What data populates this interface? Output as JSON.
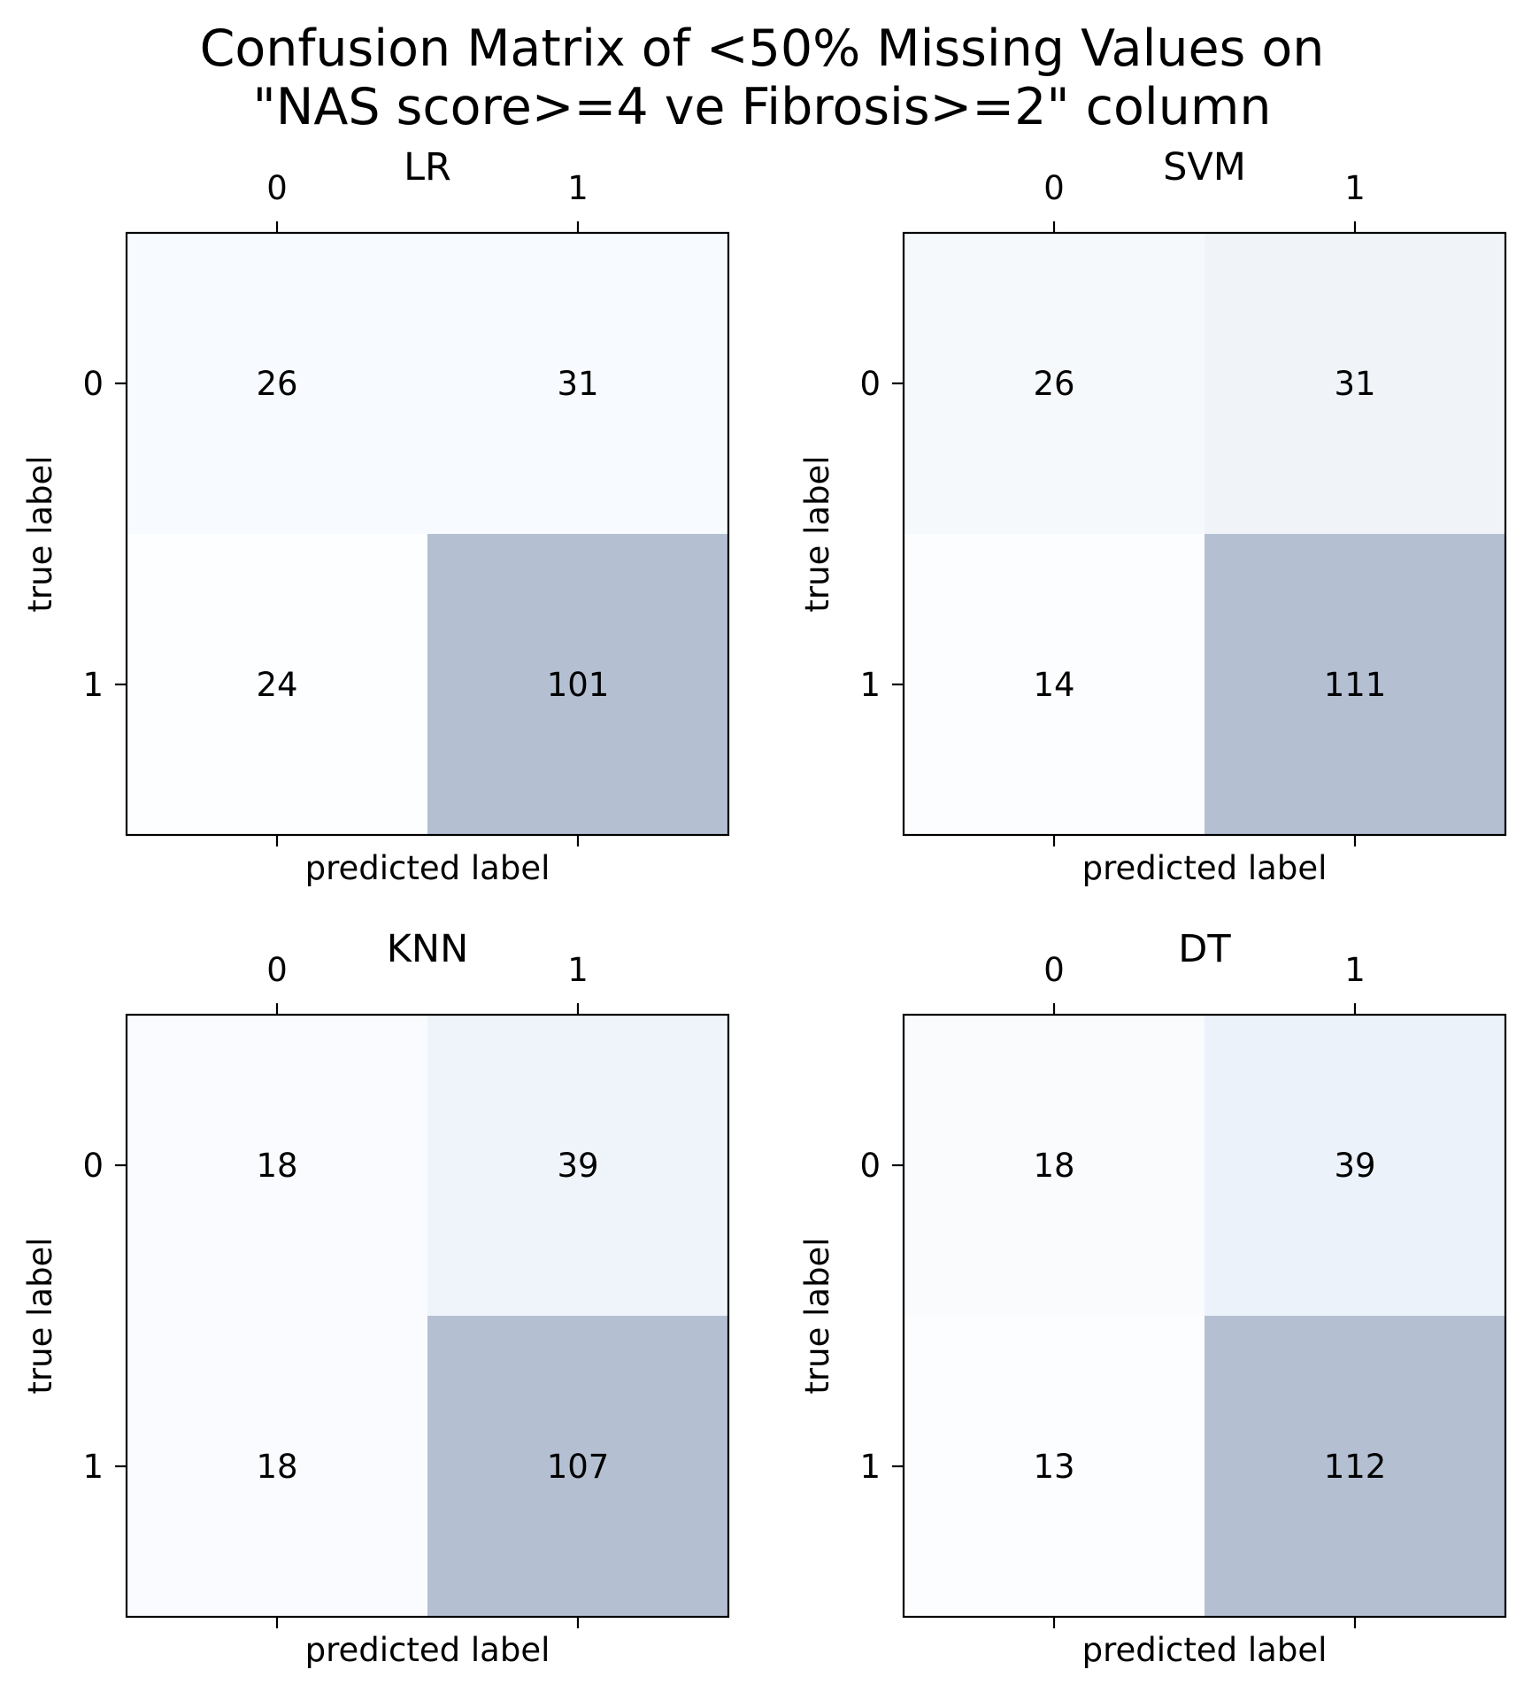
{
  "figure": {
    "title_line1": "Confusion Matrix of <50% Missing Values on",
    "title_line2": "\"NAS score>=4 ve Fibrosis>=2\" column"
  },
  "colors": {
    "low": "#f7fbff",
    "high": "#b4c0d2"
  },
  "chart_data": [
    {
      "type": "heatmap",
      "title": "LR",
      "xlabel": "predicted label",
      "ylabel": "true label",
      "x_ticks": [
        "0",
        "1"
      ],
      "y_ticks": [
        "0",
        "1"
      ],
      "matrix": [
        [
          26,
          31
        ],
        [
          24,
          101
        ]
      ],
      "cell_colors": [
        [
          "#f7fbff",
          "#f7fbff"
        ],
        [
          "#fdfeff",
          "#b4c0d2"
        ]
      ]
    },
    {
      "type": "heatmap",
      "title": "SVM",
      "xlabel": "predicted label",
      "ylabel": "true label",
      "x_ticks": [
        "0",
        "1"
      ],
      "y_ticks": [
        "0",
        "1"
      ],
      "matrix": [
        [
          26,
          31
        ],
        [
          14,
          111
        ]
      ],
      "cell_colors": [
        [
          "#f6f9fc",
          "#f0f4f9"
        ],
        [
          "#fcfdfe",
          "#b4c0d2"
        ]
      ]
    },
    {
      "type": "heatmap",
      "title": "KNN",
      "xlabel": "predicted label",
      "ylabel": "true label",
      "x_ticks": [
        "0",
        "1"
      ],
      "y_ticks": [
        "0",
        "1"
      ],
      "matrix": [
        [
          18,
          39
        ],
        [
          18,
          107
        ]
      ],
      "cell_colors": [
        [
          "#f9fbfe",
          "#eff4fb"
        ],
        [
          "#f9fbfe",
          "#b4c0d2"
        ]
      ]
    },
    {
      "type": "heatmap",
      "title": "DT",
      "xlabel": "predicted label",
      "ylabel": "true label",
      "x_ticks": [
        "0",
        "1"
      ],
      "y_ticks": [
        "0",
        "1"
      ],
      "matrix": [
        [
          18,
          39
        ],
        [
          13,
          112
        ]
      ],
      "cell_colors": [
        [
          "#f9fbfd",
          "#ecf2f9"
        ],
        [
          "#fcfdfe",
          "#b4c0d2"
        ]
      ]
    }
  ]
}
